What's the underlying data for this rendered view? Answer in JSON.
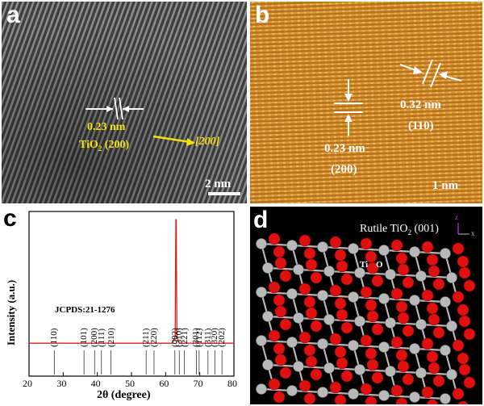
{
  "panel_a": {
    "letter": "a",
    "spacing": "0.23 nm",
    "plane_prefix": "TiO",
    "plane_sub": "2",
    "plane_suffix": " (200)",
    "direction": "[200]",
    "scale": "2 nm"
  },
  "panel_b": {
    "letter": "b",
    "spacing1": "0.23 nm",
    "plane1": "(200)",
    "spacing2": "0.32 nm",
    "plane2": "(110)",
    "scale": "1 nm"
  },
  "panel_c": {
    "letter": "c",
    "reference": "JCPDS:21-1276"
  },
  "panel_d": {
    "letter": "d",
    "title_prefix": "Rutile TiO",
    "title_sub": "2",
    "title_suffix": " (001)",
    "legend_ti": "Ti",
    "legend_o": "O",
    "axis_z": "z",
    "axis_x": "x"
  },
  "colors": {
    "label_yellow": "#f5e10a",
    "afm_orange": "#c5801f",
    "xrd_red": "#e0201a",
    "o_atom": "#e11010",
    "ti_atom": "#b9b9b9"
  },
  "chart_data": {
    "type": "line",
    "xlabel": "2θ (degree)",
    "ylabel": "Intensity (a.u.)",
    "xlim": [
      20,
      80
    ],
    "xticks": [
      20,
      30,
      40,
      50,
      60,
      70,
      80
    ],
    "series": [
      {
        "x": [
          20,
          62.0,
          62.8,
          63.0,
          63.1,
          63.3,
          64.0,
          80
        ],
        "y": [
          0.2,
          0.2,
          0.24,
          0.95,
          0.95,
          0.24,
          0.2,
          0.2
        ]
      }
    ],
    "reference_peaks": [
      {
        "two_theta": 27.4,
        "hkl": "(110)"
      },
      {
        "two_theta": 36.1,
        "hkl": "(101)"
      },
      {
        "two_theta": 39.2,
        "hkl": "(200)"
      },
      {
        "two_theta": 41.2,
        "hkl": "(111)"
      },
      {
        "two_theta": 44.0,
        "hkl": "(210)"
      },
      {
        "two_theta": 54.3,
        "hkl": "(211)"
      },
      {
        "two_theta": 56.6,
        "hkl": "(220)"
      },
      {
        "two_theta": 62.7,
        "hkl": "(002)"
      },
      {
        "two_theta": 64.0,
        "hkl": "(310)"
      },
      {
        "two_theta": 65.5,
        "hkl": "(221)"
      },
      {
        "two_theta": 69.0,
        "hkl": "(301)"
      },
      {
        "two_theta": 69.8,
        "hkl": "(112)"
      },
      {
        "two_theta": 72.4,
        "hkl": "(311)"
      },
      {
        "two_theta": 74.4,
        "hkl": "(320)"
      },
      {
        "two_theta": 76.5,
        "hkl": "(202)"
      }
    ]
  }
}
